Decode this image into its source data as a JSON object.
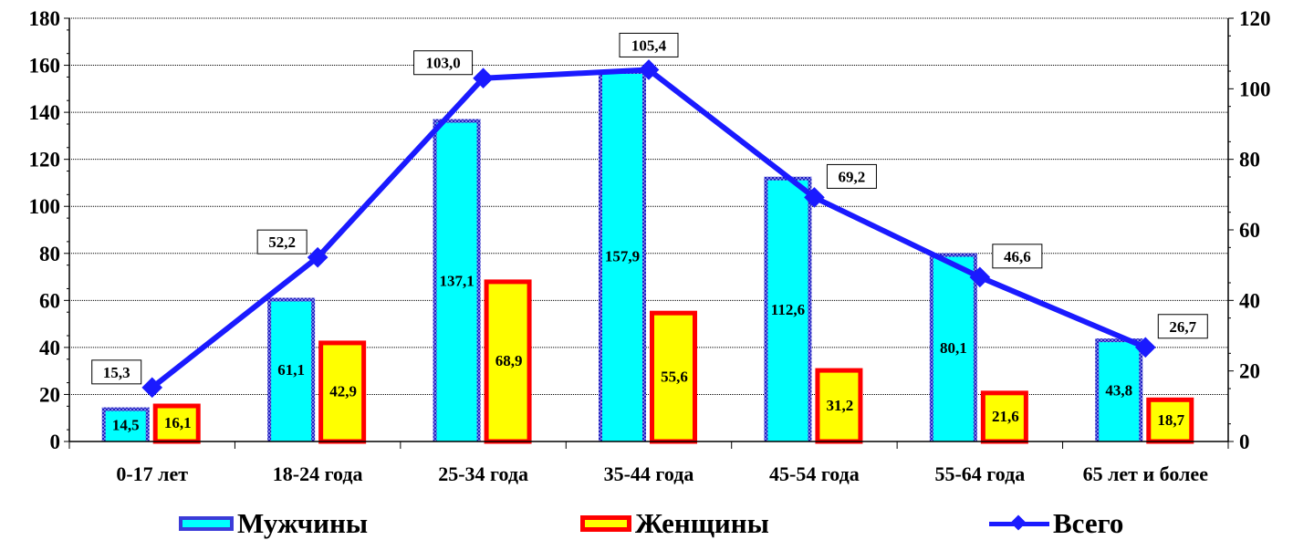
{
  "chart_data": {
    "type": "bar",
    "title": "",
    "categories": [
      "0-17 лет",
      "18-24 года",
      "25-34 года",
      "35-44 года",
      "45-54 года",
      "55-64 года",
      "65 лет и более"
    ],
    "series": [
      {
        "name": "Мужчины",
        "kind": "bar",
        "axis": "left",
        "values": [
          14.5,
          61.1,
          137.1,
          157.9,
          112.6,
          80.1,
          43.8
        ],
        "labels": [
          "14,5",
          "61,1",
          "137,1",
          "157,9",
          "112,6",
          "80,1",
          "43,8"
        ],
        "color": "#00ffff",
        "border": "#3b3bd8"
      },
      {
        "name": "Женщины",
        "kind": "bar",
        "axis": "left",
        "values": [
          16.1,
          42.9,
          68.9,
          55.6,
          31.2,
          21.6,
          18.7
        ],
        "labels": [
          "16,1",
          "42,9",
          "68,9",
          "55,6",
          "31,2",
          "21,6",
          "18,7"
        ],
        "color": "#ffff00",
        "border": "#ff0000"
      },
      {
        "name": "Всего",
        "kind": "line",
        "axis": "right",
        "values": [
          15.3,
          52.2,
          103.0,
          105.4,
          69.2,
          46.6,
          26.7
        ],
        "labels": [
          "15,3",
          "52,2",
          "103,0",
          "105,4",
          "69,2",
          "46,6",
          "26,7"
        ],
        "color": "#1a1aff"
      }
    ],
    "y_left": {
      "ylim": [
        0,
        180
      ],
      "ticks": [
        "0",
        "20",
        "40",
        "60",
        "80",
        "100",
        "120",
        "140",
        "160",
        "180"
      ]
    },
    "y_right": {
      "ylim": [
        0,
        120
      ],
      "ticks": [
        "0",
        "20",
        "40",
        "60",
        "80",
        "100",
        "120"
      ]
    },
    "grid": true,
    "legend_position": "bottom"
  },
  "legend": {
    "men": "Мужчины",
    "women": "Женщины",
    "total": "Всего"
  }
}
